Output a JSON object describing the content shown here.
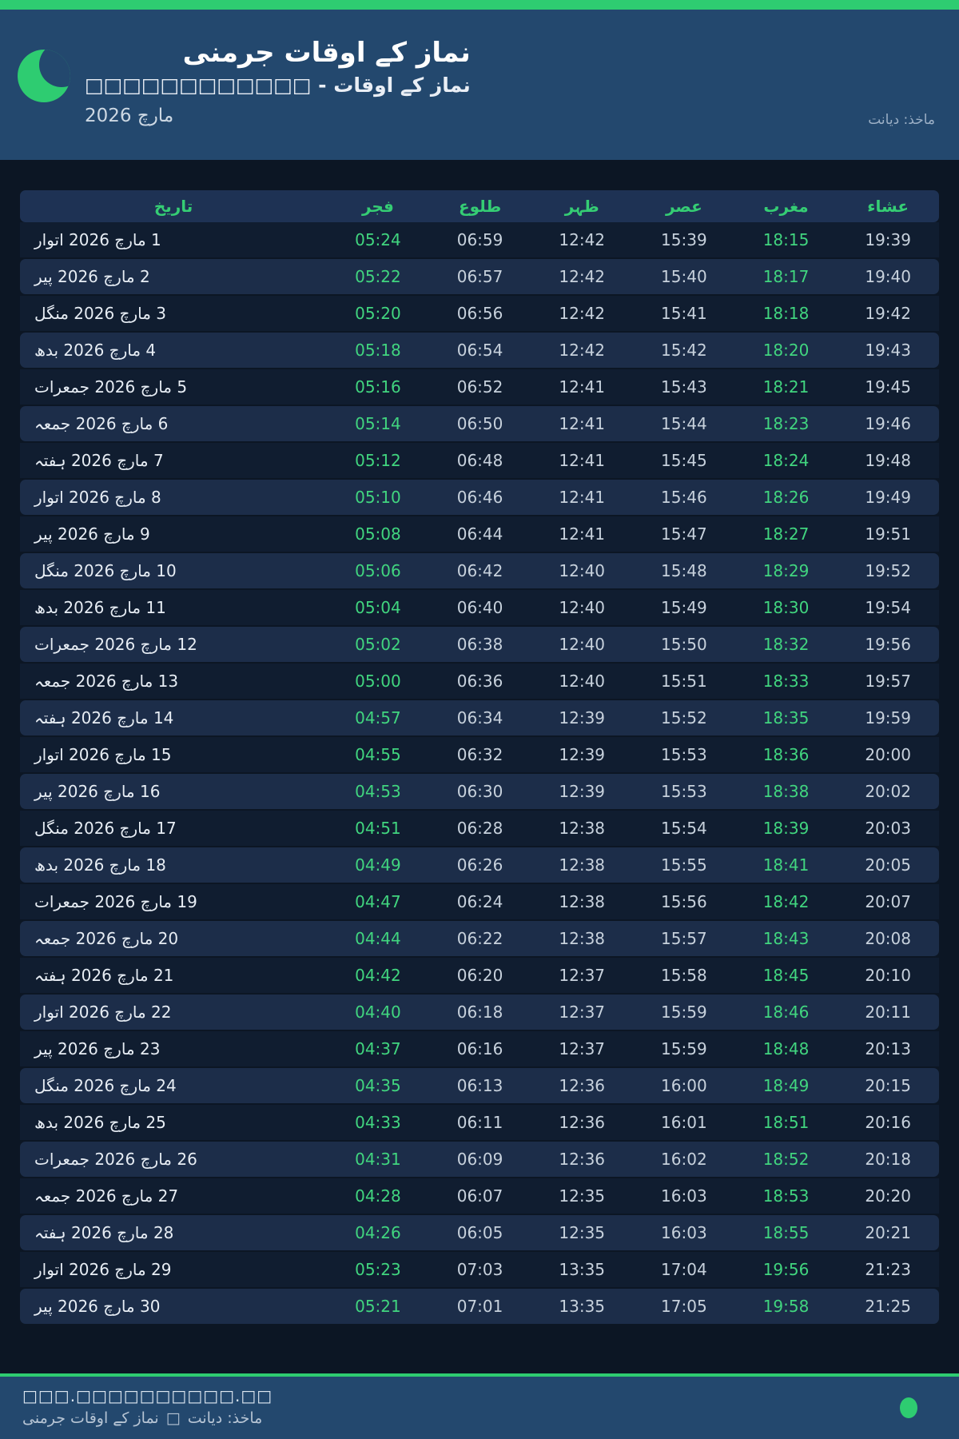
{
  "header": {
    "title": "نماز کے اوقات جرمنی",
    "subtitle": "نماز کے اوقات - □□□□□□□□□□□□",
    "month": "مارچ 2026",
    "source": "ماخذ: دیانت",
    "logo": "crescent-moon"
  },
  "colors": {
    "accent_green": "#2ecc71",
    "highlight_time_green": "#41d57f",
    "header_background": "#23486e",
    "page_background": "#0c1624",
    "row_stripe": "#1c2d49"
  },
  "table": {
    "columns": [
      "تاریخ",
      "فجر",
      "طلوع",
      "ظہر",
      "عصر",
      "مغرب",
      "عشاء"
    ],
    "column_keys": [
      "fajr",
      "sunrise",
      "zuhr",
      "asr",
      "maghrib",
      "isha"
    ],
    "green_time_indices": [
      0,
      4
    ],
    "rows": [
      {
        "date": "1 مارچ 2026 اتوار",
        "times": [
          "05:24",
          "06:59",
          "12:42",
          "15:39",
          "18:15",
          "19:39"
        ]
      },
      {
        "date": "2 مارچ 2026 پیر",
        "times": [
          "05:22",
          "06:57",
          "12:42",
          "15:40",
          "18:17",
          "19:40"
        ]
      },
      {
        "date": "3 مارچ 2026 منگل",
        "times": [
          "05:20",
          "06:56",
          "12:42",
          "15:41",
          "18:18",
          "19:42"
        ]
      },
      {
        "date": "4 مارچ 2026 بدھ",
        "times": [
          "05:18",
          "06:54",
          "12:42",
          "15:42",
          "18:20",
          "19:43"
        ]
      },
      {
        "date": "5 مارچ 2026 جمعرات",
        "times": [
          "05:16",
          "06:52",
          "12:41",
          "15:43",
          "18:21",
          "19:45"
        ]
      },
      {
        "date": "6 مارچ 2026 جمعہ",
        "times": [
          "05:14",
          "06:50",
          "12:41",
          "15:44",
          "18:23",
          "19:46"
        ]
      },
      {
        "date": "7 مارچ 2026 ہفتہ",
        "times": [
          "05:12",
          "06:48",
          "12:41",
          "15:45",
          "18:24",
          "19:48"
        ]
      },
      {
        "date": "8 مارچ 2026 اتوار",
        "times": [
          "05:10",
          "06:46",
          "12:41",
          "15:46",
          "18:26",
          "19:49"
        ]
      },
      {
        "date": "9 مارچ 2026 پیر",
        "times": [
          "05:08",
          "06:44",
          "12:41",
          "15:47",
          "18:27",
          "19:51"
        ]
      },
      {
        "date": "10 مارچ 2026 منگل",
        "times": [
          "05:06",
          "06:42",
          "12:40",
          "15:48",
          "18:29",
          "19:52"
        ]
      },
      {
        "date": "11 مارچ 2026 بدھ",
        "times": [
          "05:04",
          "06:40",
          "12:40",
          "15:49",
          "18:30",
          "19:54"
        ]
      },
      {
        "date": "12 مارچ 2026 جمعرات",
        "times": [
          "05:02",
          "06:38",
          "12:40",
          "15:50",
          "18:32",
          "19:56"
        ]
      },
      {
        "date": "13 مارچ 2026 جمعہ",
        "times": [
          "05:00",
          "06:36",
          "12:40",
          "15:51",
          "18:33",
          "19:57"
        ]
      },
      {
        "date": "14 مارچ 2026 ہفتہ",
        "times": [
          "04:57",
          "06:34",
          "12:39",
          "15:52",
          "18:35",
          "19:59"
        ]
      },
      {
        "date": "15 مارچ 2026 اتوار",
        "times": [
          "04:55",
          "06:32",
          "12:39",
          "15:53",
          "18:36",
          "20:00"
        ]
      },
      {
        "date": "16 مارچ 2026 پیر",
        "times": [
          "04:53",
          "06:30",
          "12:39",
          "15:53",
          "18:38",
          "20:02"
        ]
      },
      {
        "date": "17 مارچ 2026 منگل",
        "times": [
          "04:51",
          "06:28",
          "12:38",
          "15:54",
          "18:39",
          "20:03"
        ]
      },
      {
        "date": "18 مارچ 2026 بدھ",
        "times": [
          "04:49",
          "06:26",
          "12:38",
          "15:55",
          "18:41",
          "20:05"
        ]
      },
      {
        "date": "19 مارچ 2026 جمعرات",
        "times": [
          "04:47",
          "06:24",
          "12:38",
          "15:56",
          "18:42",
          "20:07"
        ]
      },
      {
        "date": "20 مارچ 2026 جمعہ",
        "times": [
          "04:44",
          "06:22",
          "12:38",
          "15:57",
          "18:43",
          "20:08"
        ]
      },
      {
        "date": "21 مارچ 2026 ہفتہ",
        "times": [
          "04:42",
          "06:20",
          "12:37",
          "15:58",
          "18:45",
          "20:10"
        ]
      },
      {
        "date": "22 مارچ 2026 اتوار",
        "times": [
          "04:40",
          "06:18",
          "12:37",
          "15:59",
          "18:46",
          "20:11"
        ]
      },
      {
        "date": "23 مارچ 2026 پیر",
        "times": [
          "04:37",
          "06:16",
          "12:37",
          "15:59",
          "18:48",
          "20:13"
        ]
      },
      {
        "date": "24 مارچ 2026 منگل",
        "times": [
          "04:35",
          "06:13",
          "12:36",
          "16:00",
          "18:49",
          "20:15"
        ]
      },
      {
        "date": "25 مارچ 2026 بدھ",
        "times": [
          "04:33",
          "06:11",
          "12:36",
          "16:01",
          "18:51",
          "20:16"
        ]
      },
      {
        "date": "26 مارچ 2026 جمعرات",
        "times": [
          "04:31",
          "06:09",
          "12:36",
          "16:02",
          "18:52",
          "20:18"
        ]
      },
      {
        "date": "27 مارچ 2026 جمعہ",
        "times": [
          "04:28",
          "06:07",
          "12:35",
          "16:03",
          "18:53",
          "20:20"
        ]
      },
      {
        "date": "28 مارچ 2026 ہفتہ",
        "times": [
          "04:26",
          "06:05",
          "12:35",
          "16:03",
          "18:55",
          "20:21"
        ]
      },
      {
        "date": "29 مارچ 2026 اتوار",
        "times": [
          "05:23",
          "07:03",
          "13:35",
          "17:04",
          "19:56",
          "21:23"
        ]
      },
      {
        "date": "30 مارچ 2026 پیر",
        "times": [
          "05:21",
          "07:01",
          "13:35",
          "17:05",
          "19:58",
          "21:25"
        ]
      }
    ]
  },
  "footer": {
    "line1": "□□□.□□□□□□□□□□.□□",
    "attribution_left": "نماز کے اوقات جرمنی",
    "attribution_box": "□",
    "attribution_right": "ماخذ: دیانت"
  }
}
